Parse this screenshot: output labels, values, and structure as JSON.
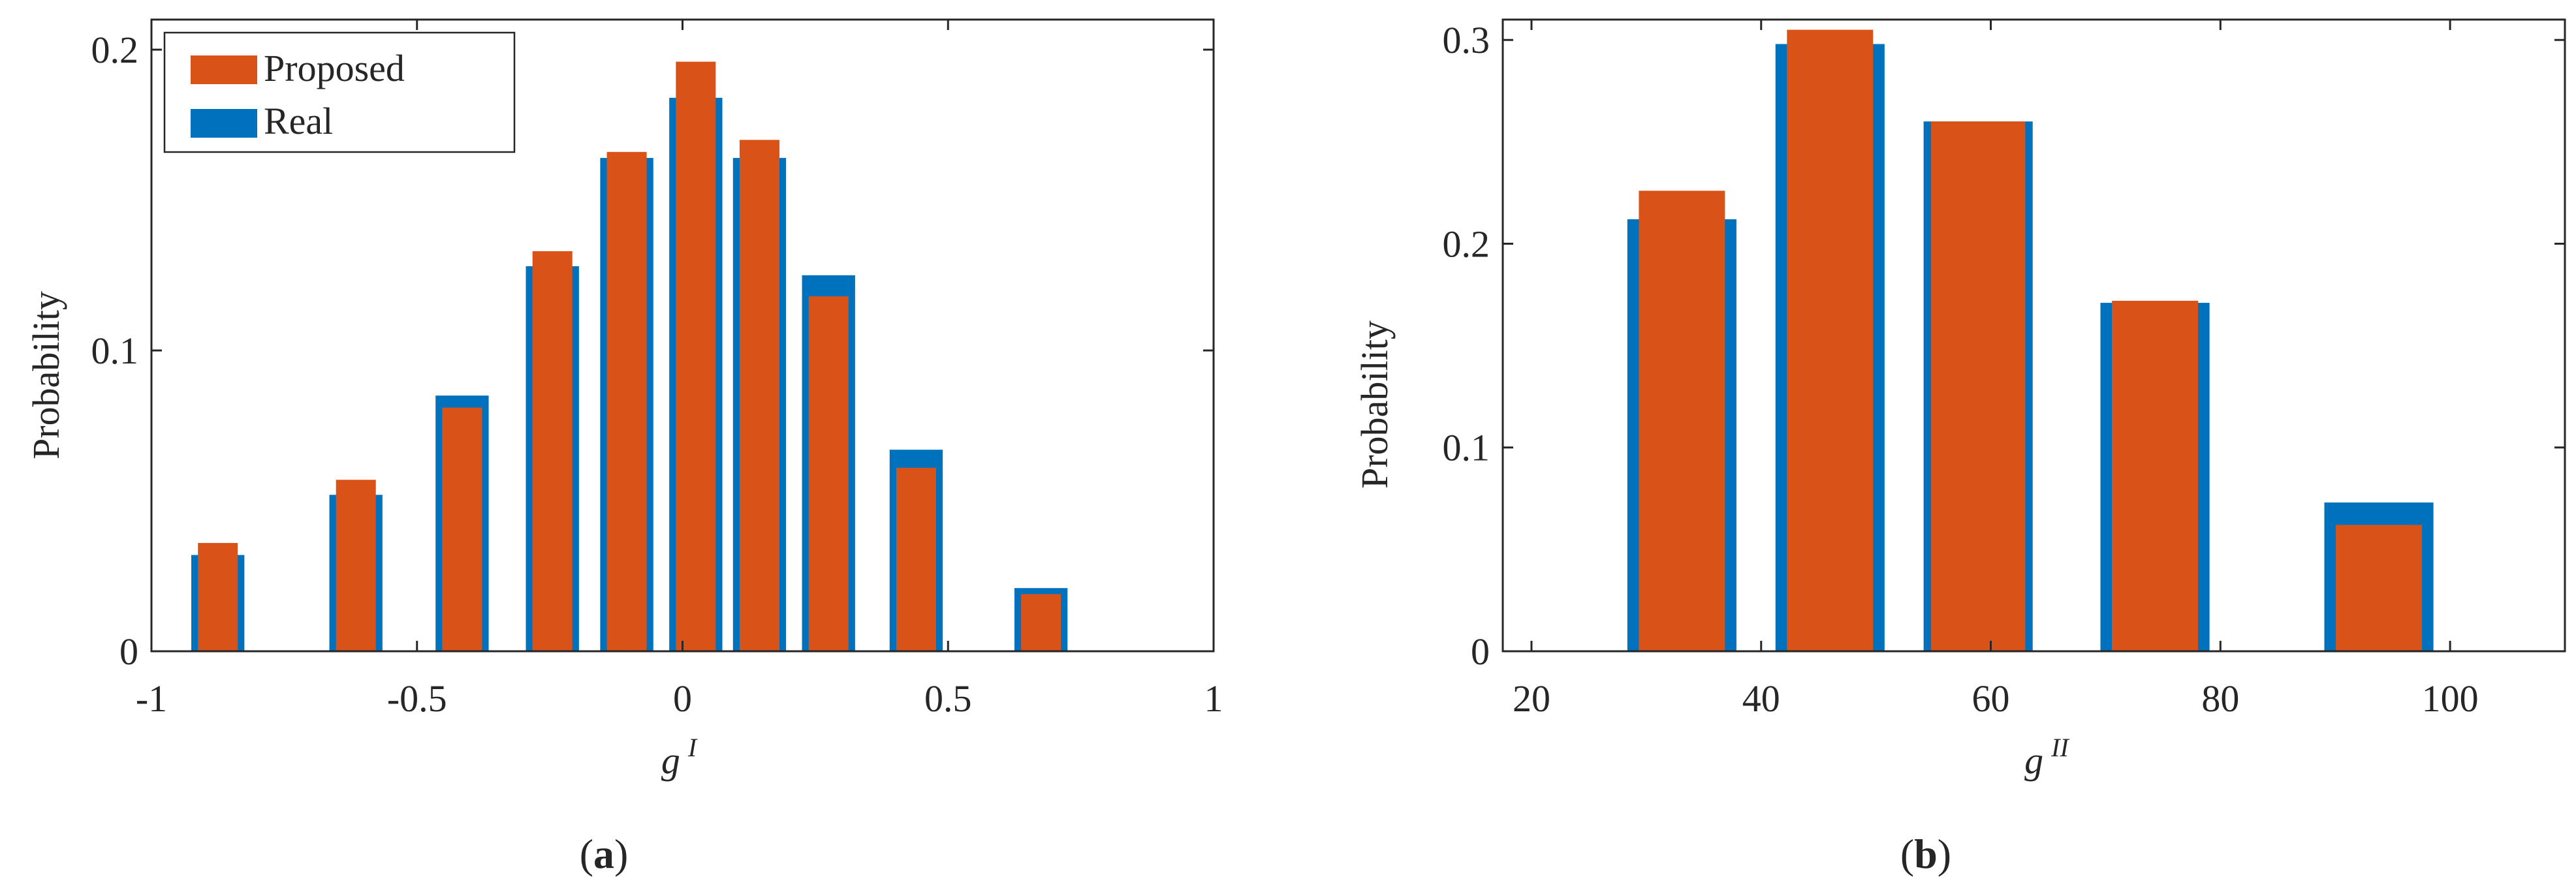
{
  "colors": {
    "proposed": "#D95319",
    "real": "#0072BD",
    "axis": "#262626"
  },
  "panels": [
    {
      "caption_open": "(",
      "caption_letter": "a",
      "caption_close": ")"
    },
    {
      "caption_open": "(",
      "caption_letter": "b",
      "caption_close": ")"
    }
  ],
  "chart_data": [
    {
      "type": "bar",
      "xlabel": "g",
      "xlabel_superscript": "I",
      "ylabel": "Probability",
      "xlim": [
        -1,
        1
      ],
      "ylim": [
        0,
        0.21
      ],
      "xticks": [
        -1,
        -0.5,
        0,
        0.5,
        1
      ],
      "xtick_labels": [
        "-1",
        "-0.5",
        "0",
        "0.5",
        "1"
      ],
      "yticks": [
        0,
        0.1,
        0.2
      ],
      "ytick_labels": [
        "0",
        "0.1",
        "0.2"
      ],
      "legend": {
        "position": "top-left",
        "entries": [
          "Proposed",
          "Real"
        ]
      },
      "real_width": 0.1,
      "proposed_width": 0.075,
      "x": [
        -0.875,
        -0.615,
        -0.415,
        -0.245,
        -0.105,
        0.025,
        0.145,
        0.275,
        0.44,
        0.675
      ],
      "series": [
        {
          "name": "Real",
          "values": [
            0.032,
            0.052,
            0.085,
            0.128,
            0.164,
            0.184,
            0.164,
            0.125,
            0.067,
            0.021
          ]
        },
        {
          "name": "Proposed",
          "values": [
            0.036,
            0.057,
            0.081,
            0.133,
            0.166,
            0.196,
            0.17,
            0.118,
            0.061,
            0.019
          ]
        }
      ]
    },
    {
      "type": "bar",
      "xlabel": "g",
      "xlabel_superscript": "II",
      "ylabel": "Probability",
      "xlim": [
        17.5,
        110
      ],
      "ylim": [
        0,
        0.31
      ],
      "xticks": [
        20,
        40,
        60,
        80,
        100
      ],
      "xtick_labels": [
        "20",
        "40",
        "60",
        "80",
        "100"
      ],
      "yticks": [
        0,
        0.1,
        0.2,
        0.3
      ],
      "ytick_labels": [
        "0",
        "0.1",
        "0.2",
        "0.3"
      ],
      "x": [
        33.1,
        46,
        58.9,
        74.3,
        93.8
      ],
      "real_widths": [
        9.5,
        9.5,
        9.5,
        9.5,
        9.5
      ],
      "proposed_widths": [
        7.5,
        7.5,
        8.2,
        7.5,
        7.5
      ],
      "series": [
        {
          "name": "Real",
          "values": [
            0.212,
            0.298,
            0.26,
            0.171,
            0.073
          ]
        },
        {
          "name": "Proposed",
          "values": [
            0.226,
            0.305,
            0.26,
            0.172,
            0.062
          ]
        }
      ]
    }
  ]
}
